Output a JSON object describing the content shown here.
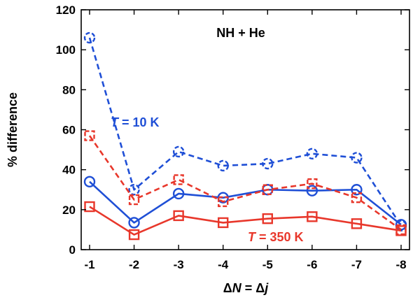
{
  "chart_data": {
    "type": "line",
    "title": "NH + He",
    "xlabel": "ΔN = Δj",
    "xlabel_parts": [
      "Δ",
      "N",
      " = Δ",
      "j"
    ],
    "ylabel": "% difference",
    "categories": [
      "-1",
      "-2",
      "-3",
      "-4",
      "-5",
      "-6",
      "-7",
      "-8"
    ],
    "ylim": [
      0,
      120
    ],
    "yticks": [
      0,
      20,
      40,
      60,
      80,
      100,
      120
    ],
    "grid": false,
    "legend": "none",
    "series": [
      {
        "key": "blue_dashed",
        "color": "#1f4fd6",
        "dash": true,
        "marker": "circle",
        "values": [
          106,
          30,
          49,
          42,
          43,
          48,
          46,
          12
        ]
      },
      {
        "key": "blue_solid",
        "color": "#1f4fd6",
        "dash": false,
        "marker": "circle",
        "values": [
          34,
          13.5,
          28,
          26,
          30,
          29.5,
          30,
          12.5
        ]
      },
      {
        "key": "red_dashed",
        "color": "#e8372b",
        "dash": true,
        "marker": "square",
        "values": [
          57,
          25,
          35,
          24,
          30,
          33,
          26,
          10
        ]
      },
      {
        "key": "red_solid",
        "color": "#e8372b",
        "dash": false,
        "marker": "square",
        "values": [
          21.5,
          7.5,
          17,
          13.5,
          15.5,
          16.5,
          13,
          9.5
        ]
      }
    ],
    "annotations": [
      {
        "key": "t10",
        "italic": "T",
        "rest": " = 10 K",
        "color": "#1f4fd6"
      },
      {
        "key": "t350",
        "italic": "T",
        "rest": " = 350 K",
        "color": "#e8372b"
      }
    ]
  }
}
